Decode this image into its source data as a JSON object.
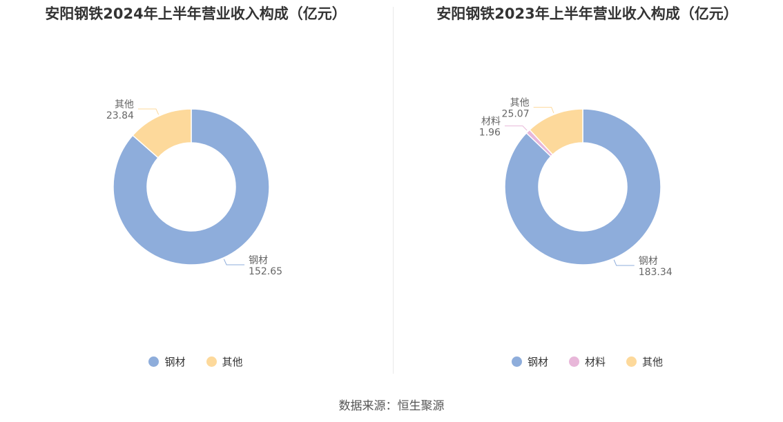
{
  "colors": {
    "钢材": "#8eaddb",
    "材料": "#e8b7d9",
    "其他": "#fdd99b"
  },
  "source": "数据来源：恒生聚源",
  "chart_data": [
    {
      "type": "donut",
      "title": "安阳钢铁2024年上半年营业收入构成（亿元）",
      "slices": [
        {
          "name": "钢材",
          "value": 152.65,
          "label_value": "152.65"
        },
        {
          "name": "其他",
          "value": 23.84,
          "label_value": "23.84"
        }
      ],
      "legend": [
        "钢材",
        "其他"
      ],
      "legend_position": "bottom"
    },
    {
      "type": "donut",
      "title": "安阳钢铁2023年上半年营业收入构成（亿元）",
      "slices": [
        {
          "name": "钢材",
          "value": 183.34,
          "label_value": "183.34"
        },
        {
          "name": "材料",
          "value": 1.96,
          "label_value": "1.96"
        },
        {
          "name": "其他",
          "value": 25.07,
          "label_value": "25.07"
        }
      ],
      "legend": [
        "钢材",
        "材料",
        "其他"
      ],
      "legend_position": "bottom"
    }
  ]
}
